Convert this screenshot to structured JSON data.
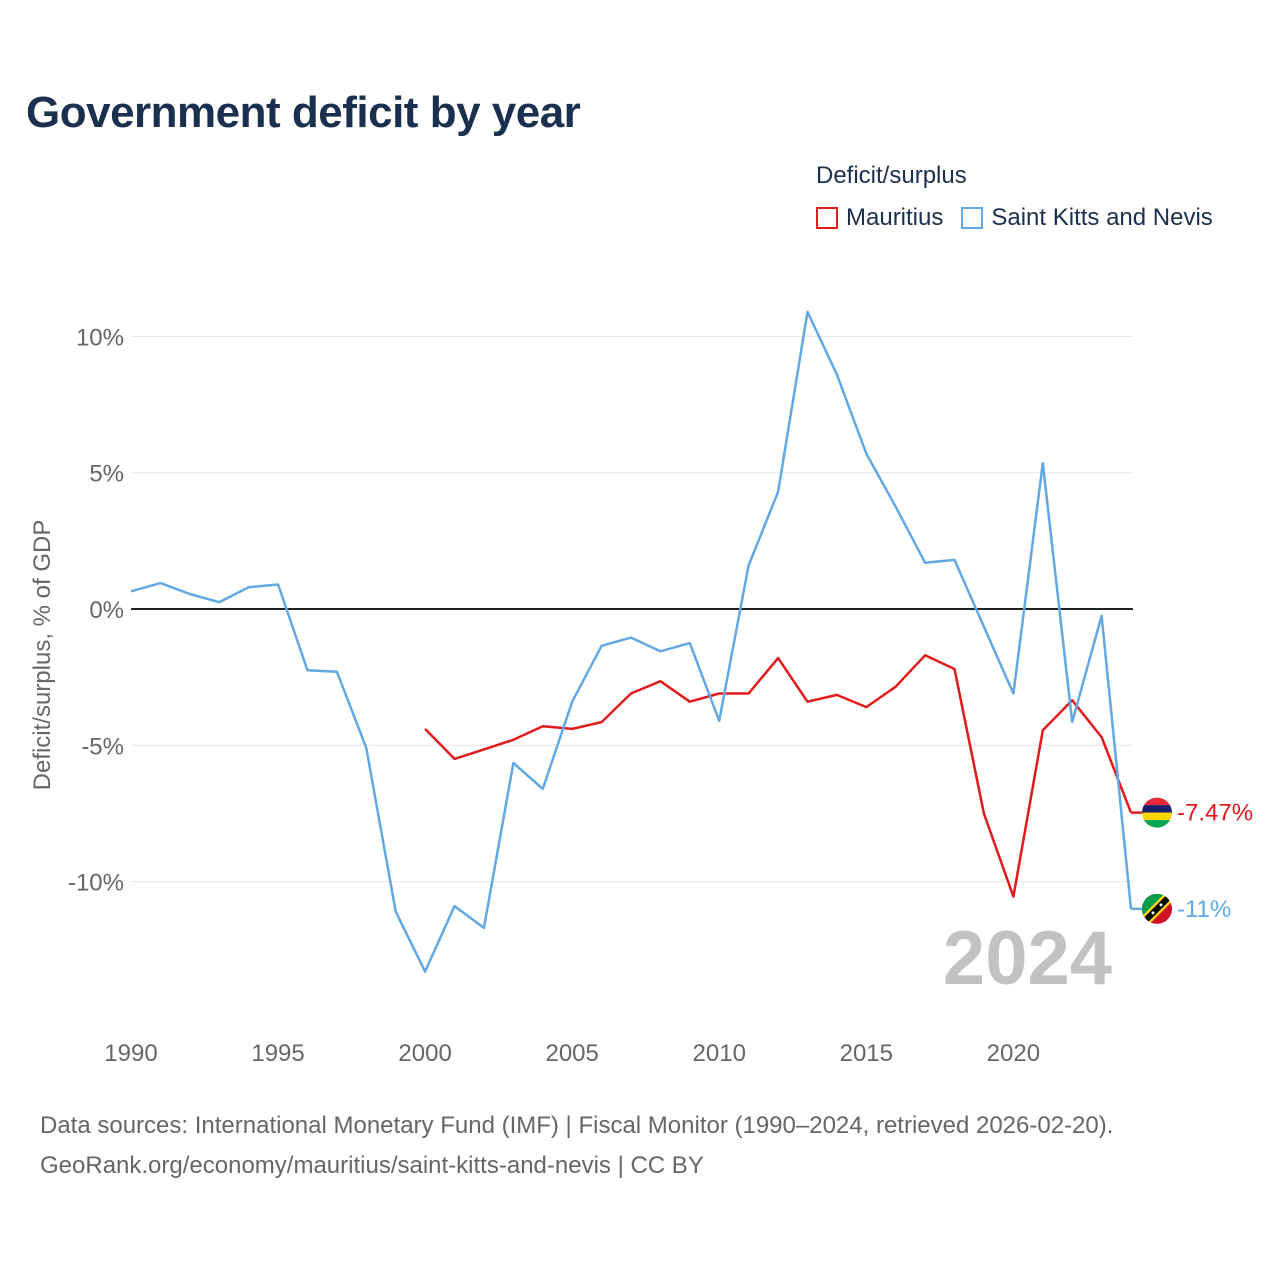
{
  "title": "Government deficit by year",
  "legend": {
    "title": "Deficit/surplus",
    "items": [
      {
        "name": "Mauritius",
        "color": "#e31a1c"
      },
      {
        "name": "Saint Kitts and Nevis",
        "color": "#62a8e5"
      }
    ]
  },
  "footer": {
    "line1": "Data sources: International Monetary Fund (IMF) | Fiscal Monitor (1990–2024, retrieved 2026-02-20).",
    "line2": "GeoRank.org/economy/mauritius/saint-kitts-and-nevis | CC BY"
  },
  "chart_data": {
    "type": "line",
    "title": "Government deficit by year",
    "ylabel": "Deficit/surplus, % of GDP",
    "xlabel": "",
    "year_label": "2024",
    "x_ticks": [
      1990,
      1995,
      2000,
      2005,
      2010,
      2015,
      2020
    ],
    "x_tick_labels": [
      "1990",
      "1995",
      "2000",
      "2005",
      "2010",
      "2015",
      "2020"
    ],
    "y_ticks": [
      10,
      5,
      0,
      -5,
      -10
    ],
    "y_tick_labels": [
      "10%",
      "5%",
      "0%",
      "-5%",
      "-10%"
    ],
    "xlim": [
      1990,
      2024
    ],
    "ylim": [
      -14.8,
      11.5
    ],
    "zero_line": 0,
    "series": [
      {
        "name": "Mauritius",
        "color": "#e31a1c",
        "end_label": "-7.47%",
        "x": [
          2000,
          2001,
          2002,
          2003,
          2004,
          2005,
          2006,
          2007,
          2008,
          2009,
          2010,
          2011,
          2012,
          2013,
          2014,
          2015,
          2016,
          2017,
          2018,
          2019,
          2020,
          2021,
          2022,
          2023,
          2024
        ],
        "values": [
          -4.4,
          -5.5,
          -5.15,
          -4.8,
          -4.3,
          -4.4,
          -4.15,
          -3.1,
          -2.65,
          -3.4,
          -3.1,
          -3.1,
          -1.8,
          -3.4,
          -3.15,
          -3.6,
          -2.85,
          -1.7,
          -2.2,
          -7.5,
          -10.55,
          -4.45,
          -3.35,
          -4.7,
          -7.47
        ]
      },
      {
        "name": "Saint Kitts and Nevis",
        "color": "#62a8e5",
        "end_label": "-11%",
        "x": [
          1990,
          1991,
          1992,
          1993,
          1994,
          1995,
          1996,
          1997,
          1998,
          1999,
          2000,
          2001,
          2002,
          2003,
          2004,
          2005,
          2006,
          2007,
          2008,
          2009,
          2010,
          2011,
          2012,
          2013,
          2014,
          2015,
          2016,
          2017,
          2018,
          2019,
          2020,
          2021,
          2022,
          2023,
          2024
        ],
        "values": [
          0.65,
          0.95,
          0.55,
          0.25,
          0.8,
          0.9,
          -2.25,
          -2.3,
          -5.1,
          -11.1,
          -13.3,
          -10.9,
          -11.7,
          -5.65,
          -6.6,
          -3.4,
          -1.35,
          -1.05,
          -1.55,
          -1.25,
          -4.1,
          1.6,
          4.3,
          10.9,
          8.6,
          5.7,
          3.75,
          1.7,
          1.8,
          -0.65,
          -3.1,
          5.35,
          -4.15,
          -0.25,
          -11
        ]
      }
    ]
  }
}
